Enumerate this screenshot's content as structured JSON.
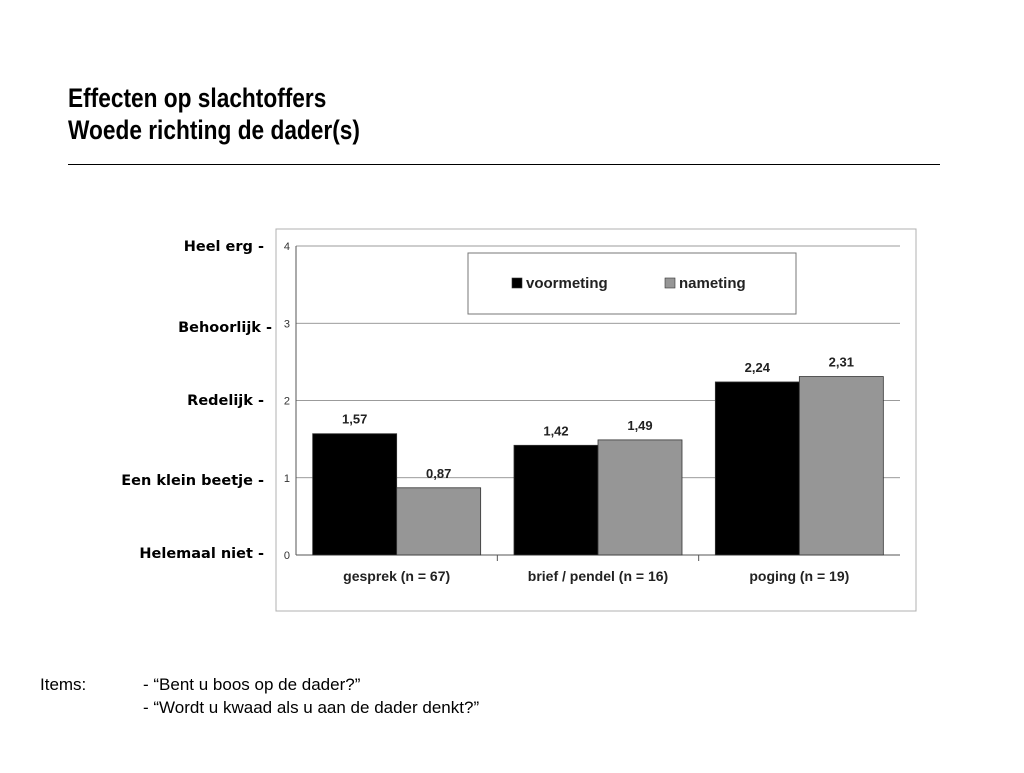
{
  "slide": {
    "title_line1": "Effecten op slachtoffers",
    "title_line2": "Woede richting de dader(s)"
  },
  "scale_labels": [
    "Heel erg -",
    "Behoorlijk -",
    "Redelijk -",
    "Een klein beetje -",
    "Helemaal niet -"
  ],
  "items": {
    "label": "Items:",
    "lines": [
      "- “Bent u boos op de dader?”",
      "- “Wordt u kwaad als u aan de dader denkt?”"
    ]
  },
  "chart_data": {
    "type": "bar",
    "categories": [
      "gesprek (n = 67)",
      "brief / pendel (n = 16)",
      "poging (n = 19)"
    ],
    "series": [
      {
        "name": "voormeting",
        "values": [
          1.57,
          1.42,
          2.24
        ],
        "labels": [
          "1,57",
          "1,42",
          "2,24"
        ],
        "color": "#000000"
      },
      {
        "name": "nameting",
        "values": [
          0.87,
          1.49,
          2.31
        ],
        "labels": [
          "0,87",
          "1,49",
          "2,31"
        ],
        "color": "#969696"
      }
    ],
    "ylim": [
      0,
      4
    ],
    "yticks": [
      "0",
      "1",
      "2",
      "3",
      "4"
    ],
    "grid": true,
    "legend_position": "top-right"
  }
}
